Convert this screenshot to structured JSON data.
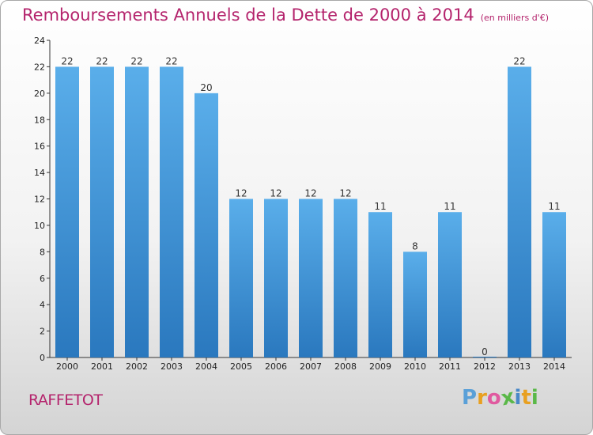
{
  "title": "Remboursements Annuels de la Dette de 2000 à 2014",
  "subtitle": "(en milliers d'€)",
  "commune": "RAFFETOT",
  "logo": {
    "text": "Proxiti",
    "colors": [
      "#5aa0d8",
      "#e8a020",
      "#e05aa0",
      "#5ab848",
      "#4a88c8",
      "#e8a020",
      "#5ab848"
    ]
  },
  "chart_data": {
    "type": "bar",
    "categories": [
      "2000",
      "2001",
      "2002",
      "2003",
      "2004",
      "2005",
      "2006",
      "2007",
      "2008",
      "2009",
      "2010",
      "2011",
      "2012",
      "2013",
      "2014"
    ],
    "values": [
      22,
      22,
      22,
      22,
      20,
      12,
      12,
      12,
      12,
      11,
      8,
      11,
      0,
      22,
      11
    ],
    "ylim": [
      0,
      24
    ],
    "yticks": [
      0,
      2,
      4,
      6,
      8,
      10,
      12,
      14,
      16,
      18,
      20,
      22,
      24
    ],
    "grid": false,
    "bar_color": "#4a9ee0"
  }
}
